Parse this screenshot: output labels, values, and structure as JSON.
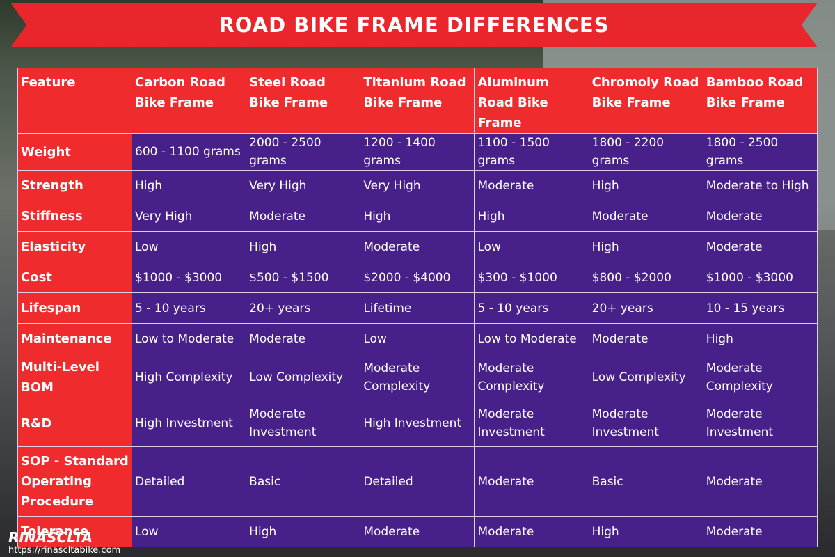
{
  "title": "ROAD BIKE FRAME DIFFERENCES",
  "table": {
    "header": [
      "Feature",
      "Carbon Road Bike Frame",
      "Steel Road Bike Frame",
      "Titanium Road Bike Frame",
      "Aluminum Road Bike Frame",
      "Chromoly Road Bike Frame",
      "Bamboo Road Bike Frame"
    ],
    "rows": [
      [
        "Weight",
        "600 - 1100 grams",
        "2000 - 2500 grams",
        "1200 - 1400 grams",
        "1100 - 1500 grams",
        "1800 - 2200 grams",
        "1800 - 2500 grams"
      ],
      [
        "Strength",
        "High",
        "Very High",
        "Very High",
        "Moderate",
        "High",
        "Moderate to High"
      ],
      [
        "Stiffness",
        "Very High",
        "Moderate",
        "High",
        "High",
        "Moderate",
        "Moderate"
      ],
      [
        "Elasticity",
        "Low",
        "High",
        "Moderate",
        "Low",
        "High",
        "Moderate"
      ],
      [
        "Cost",
        "$1000 - $3000",
        "$500 - $1500",
        "$2000 - $4000",
        "$300 - $1000",
        "$800 - $2000",
        "$1000 - $3000"
      ],
      [
        "Lifespan",
        "5 - 10 years",
        "20+ years",
        "Lifetime",
        "5 - 10 years",
        "20+ years",
        "10 - 15 years"
      ],
      [
        "Maintenance",
        "Low to Moderate",
        "Moderate",
        "Low",
        "Low to Moderate",
        "Moderate",
        "High"
      ],
      [
        "Multi-Level BOM",
        "High Complexity",
        "Low Complexity",
        "Moderate Complexity",
        "Moderate Complexity",
        "Low Complexity",
        "Moderate Complexity"
      ],
      [
        "R&D",
        "High Investment",
        "Moderate Investment",
        "High Investment",
        "Moderate Investment",
        "Moderate Investment",
        "Moderate Investment"
      ],
      [
        "SOP - Standard Operating Procedure",
        "Detailed",
        "Basic",
        "Detailed",
        "Moderate",
        "Basic",
        "Moderate"
      ],
      [
        "Tolerance",
        "Low",
        "High",
        "Moderate",
        "Moderate",
        "High",
        "Moderate"
      ]
    ]
  },
  "logo": "RINASCLTA",
  "url": "https://rinascltabike.com"
}
